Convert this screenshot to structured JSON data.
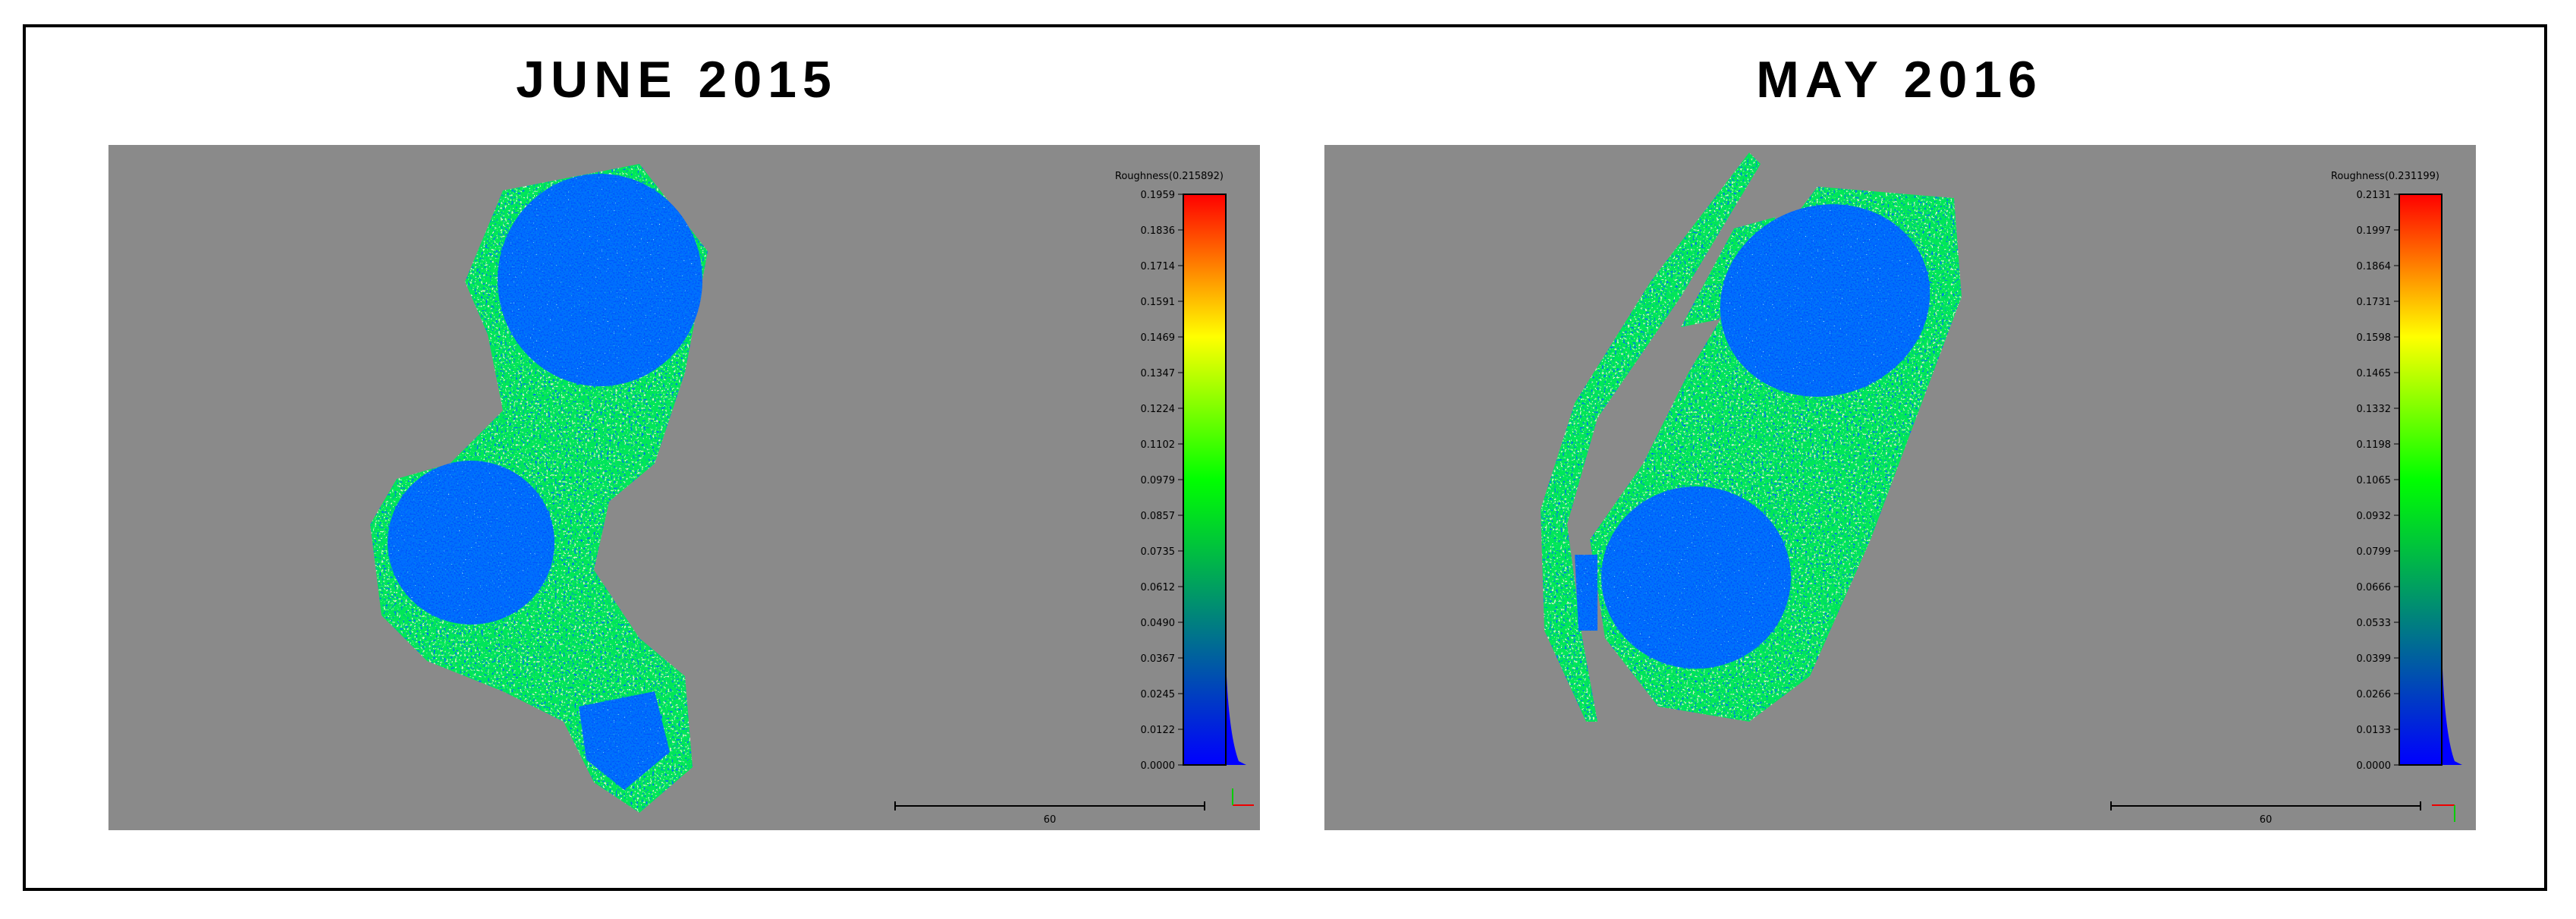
{
  "panels": [
    {
      "title": "JUNE 2015",
      "colorbar_label": "Roughness(0.215892)",
      "ticks": [
        "0.1959",
        "0.1836",
        "0.1714",
        "0.1591",
        "0.1469",
        "0.1347",
        "0.1224",
        "0.1102",
        "0.0979",
        "0.0857",
        "0.0735",
        "0.0612",
        "0.0490",
        "0.0367",
        "0.0245",
        "0.0122",
        "0.0000"
      ],
      "scale_label": "60"
    },
    {
      "title": "MAY 2016",
      "colorbar_label": "Roughness(0.231199)",
      "ticks": [
        "0.2131",
        "0.1997",
        "0.1864",
        "0.1731",
        "0.1598",
        "0.1465",
        "0.1332",
        "0.1198",
        "0.1065",
        "0.0932",
        "0.0799",
        "0.0666",
        "0.0533",
        "0.0399",
        "0.0266",
        "0.0133",
        "0.0000"
      ],
      "scale_label": "60"
    }
  ]
}
